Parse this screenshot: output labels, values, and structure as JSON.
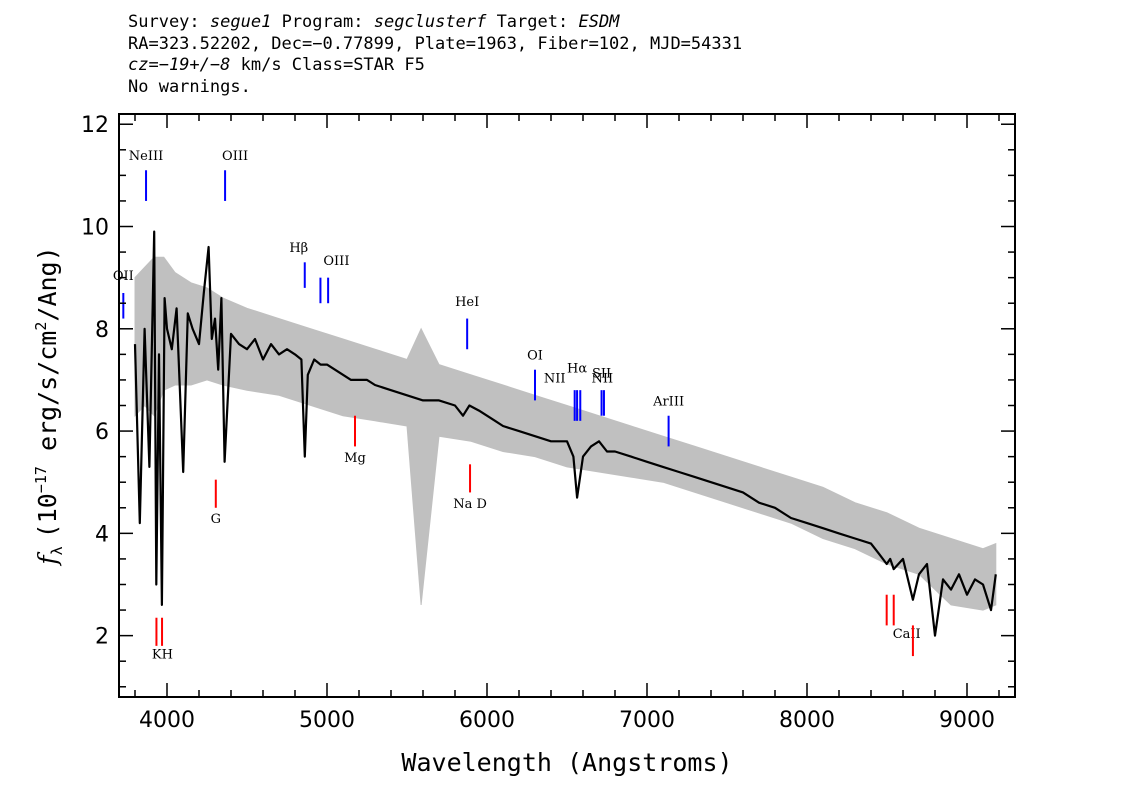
{
  "header": {
    "survey_label": "Survey:",
    "survey": "segue1",
    "program_label": "Program:",
    "program": "segclusterf",
    "target_label": "Target:",
    "target": "ESDM",
    "line2": "RA=323.52202, Dec=−0.77899, Plate=1963, Fiber=102, MJD=54331",
    "cz_label": "cz=",
    "cz_value": "−19+/−8",
    "cz_rest": " km/s Class=STAR F5",
    "line4": "No warnings."
  },
  "chart_data": {
    "type": "line",
    "xlabel": "Wavelength (Angstroms)",
    "ylabel_text": "(10",
    "ylabel_exp": "−17",
    "ylabel_mid": " erg/s/cm",
    "ylabel_exp2": "2",
    "ylabel_end": "/Ang)",
    "ylabel_symbol": "f",
    "ylabel_sub": "λ",
    "xlim": [
      3700,
      9300
    ],
    "ylim": [
      0.8,
      12.2
    ],
    "xticks": [
      4000,
      5000,
      6000,
      7000,
      8000,
      9000
    ],
    "xtick_labels": [
      "4000",
      "5000",
      "6000",
      "7000",
      "8000",
      "9000"
    ],
    "yticks": [
      2,
      4,
      6,
      8,
      10,
      12
    ],
    "ytick_labels": [
      "2",
      "4",
      "6",
      "8",
      "10",
      "12"
    ],
    "series": [
      {
        "role": "flux",
        "color": "#000000",
        "x": [
          3800,
          3830,
          3860,
          3890,
          3920,
          3933,
          3950,
          3968,
          3985,
          4000,
          4030,
          4060,
          4101,
          4130,
          4160,
          4200,
          4230,
          4260,
          4280,
          4300,
          4320,
          4340,
          4360,
          4400,
          4450,
          4500,
          4550,
          4600,
          4650,
          4700,
          4750,
          4800,
          4840,
          4861,
          4880,
          4920,
          4960,
          5000,
          5050,
          5100,
          5150,
          5200,
          5250,
          5300,
          5400,
          5500,
          5600,
          5700,
          5800,
          5850,
          5890,
          5950,
          6000,
          6050,
          6100,
          6200,
          6300,
          6400,
          6500,
          6540,
          6563,
          6600,
          6650,
          6700,
          6750,
          6800,
          6900,
          7000,
          7100,
          7200,
          7300,
          7400,
          7500,
          7600,
          7700,
          7800,
          7900,
          8000,
          8100,
          8200,
          8300,
          8400,
          8450,
          8498,
          8520,
          8542,
          8600,
          8662,
          8700,
          8750,
          8800,
          8850,
          8900,
          8950,
          9000,
          9050,
          9100,
          9150,
          9180
        ],
        "y": [
          7.7,
          4.2,
          8.0,
          5.3,
          9.9,
          3.0,
          7.5,
          2.6,
          8.6,
          8.0,
          7.6,
          8.4,
          5.2,
          8.3,
          8.0,
          7.7,
          8.7,
          9.6,
          7.8,
          8.2,
          7.2,
          8.6,
          5.4,
          7.9,
          7.7,
          7.6,
          7.8,
          7.4,
          7.7,
          7.5,
          7.6,
          7.5,
          7.4,
          5.5,
          7.1,
          7.4,
          7.3,
          7.3,
          7.2,
          7.1,
          7.0,
          7.0,
          7.0,
          6.9,
          6.8,
          6.7,
          6.6,
          6.6,
          6.5,
          6.3,
          6.5,
          6.4,
          6.3,
          6.2,
          6.1,
          6.0,
          5.9,
          5.8,
          5.8,
          5.5,
          4.7,
          5.5,
          5.7,
          5.8,
          5.6,
          5.6,
          5.5,
          5.4,
          5.3,
          5.2,
          5.1,
          5.0,
          4.9,
          4.8,
          4.6,
          4.5,
          4.3,
          4.2,
          4.1,
          4.0,
          3.9,
          3.8,
          3.6,
          3.4,
          3.5,
          3.3,
          3.5,
          2.7,
          3.2,
          3.4,
          2.0,
          3.1,
          2.9,
          3.2,
          2.8,
          3.1,
          3.0,
          2.5,
          3.2
        ]
      },
      {
        "role": "error",
        "color": "#c0c0c0",
        "x": [
          3800,
          3860,
          3920,
          3980,
          4050,
          4150,
          4250,
          4350,
          4500,
          4700,
          4900,
          5100,
          5300,
          5500,
          5588,
          5700,
          5900,
          6100,
          6300,
          6500,
          6700,
          6900,
          7100,
          7300,
          7500,
          7700,
          7900,
          8100,
          8300,
          8500,
          8700,
          8900,
          9100,
          9180
        ],
        "y_low": [
          6.3,
          6.5,
          6.3,
          6.8,
          6.9,
          6.9,
          7.0,
          6.9,
          6.8,
          6.7,
          6.5,
          6.3,
          6.2,
          6.1,
          2.6,
          5.9,
          5.8,
          5.6,
          5.5,
          5.3,
          5.2,
          5.1,
          5.0,
          4.8,
          4.6,
          4.4,
          4.2,
          3.9,
          3.7,
          3.4,
          3.2,
          2.6,
          2.5,
          2.6
        ],
        "y_high": [
          9.0,
          9.2,
          9.4,
          9.4,
          9.1,
          8.9,
          8.8,
          8.6,
          8.4,
          8.2,
          8.0,
          7.8,
          7.6,
          7.4,
          8.0,
          7.3,
          7.1,
          6.9,
          6.7,
          6.5,
          6.3,
          6.1,
          5.9,
          5.7,
          5.5,
          5.3,
          5.1,
          4.9,
          4.6,
          4.4,
          4.1,
          3.9,
          3.7,
          3.8
        ]
      }
    ],
    "emission_lines": [
      {
        "label": "OII",
        "wavelength": 3727,
        "y1": 8.2,
        "y2": 8.7,
        "label_y": 8.95,
        "label_dx": 0
      },
      {
        "label": "NeIII",
        "wavelength": 3869,
        "y1": 10.5,
        "y2": 11.1,
        "label_y": 11.3,
        "label_dx": 0
      },
      {
        "label": "OIII",
        "wavelength": 4363,
        "y1": 10.5,
        "y2": 11.1,
        "label_y": 11.3,
        "label_dx": 10
      },
      {
        "label": "Hβ",
        "wavelength": 4861,
        "y1": 8.8,
        "y2": 9.3,
        "label_y": 9.5,
        "label_dx": -6
      },
      {
        "label": "OIII",
        "wavelength": 4959,
        "y1": 8.5,
        "y2": 9.0,
        "label_y": 9.25,
        "label_dx": 16
      },
      {
        "label": "OIII",
        "wavelength": 5007,
        "y1": 8.5,
        "y2": 9.0,
        "label_y": null,
        "label_dx": 0
      },
      {
        "label": "HeI",
        "wavelength": 5876,
        "y1": 7.6,
        "y2": 8.2,
        "label_y": 8.45,
        "label_dx": 0
      },
      {
        "label": "OI",
        "wavelength": 6300,
        "y1": 6.6,
        "y2": 7.2,
        "label_y": 7.4,
        "label_dx": 0
      },
      {
        "label": "NII",
        "wavelength": 6548,
        "y1": 6.2,
        "y2": 6.8,
        "label_y": 6.95,
        "label_dx": -20
      },
      {
        "label": "Hα",
        "wavelength": 6563,
        "y1": 6.2,
        "y2": 6.8,
        "label_y": 7.15,
        "label_dx": 0
      },
      {
        "label": "NII",
        "wavelength": 6583,
        "y1": 6.2,
        "y2": 6.8,
        "label_y": 6.95,
        "label_dx": 22
      },
      {
        "label": "SII",
        "wavelength": 6716,
        "y1": 6.3,
        "y2": 6.8,
        "label_y": 7.05,
        "label_dx": 0
      },
      {
        "label": "SII",
        "wavelength": 6731,
        "y1": 6.3,
        "y2": 6.8,
        "label_y": null,
        "label_dx": 0
      },
      {
        "label": "ArIII",
        "wavelength": 7135,
        "y1": 5.7,
        "y2": 6.3,
        "label_y": 6.5,
        "label_dx": 0
      }
    ],
    "absorption_lines": [
      {
        "label": "KH",
        "wavelength": 3934,
        "y1": 1.8,
        "y2": 2.35,
        "label_y": 1.55,
        "label_dx": 6
      },
      {
        "label": "KH",
        "wavelength": 3969,
        "y1": 1.8,
        "y2": 2.35,
        "label_y": null,
        "label_dx": 0
      },
      {
        "label": "G",
        "wavelength": 4305,
        "y1": 4.5,
        "y2": 5.05,
        "label_y": 4.2,
        "label_dx": 0
      },
      {
        "label": "Mg",
        "wavelength": 5175,
        "y1": 5.7,
        "y2": 6.3,
        "label_y": 5.4,
        "label_dx": 0
      },
      {
        "label": "Na D",
        "wavelength": 5894,
        "y1": 4.8,
        "y2": 5.35,
        "label_y": 4.5,
        "label_dx": 0
      },
      {
        "label": "CaII",
        "wavelength": 8498,
        "y1": 2.2,
        "y2": 2.8,
        "label_y": 1.95,
        "label_dx": 20
      },
      {
        "label": "CaII",
        "wavelength": 8542,
        "y1": 2.2,
        "y2": 2.8,
        "label_y": null,
        "label_dx": 0
      },
      {
        "label": "CaII",
        "wavelength": 8662,
        "y1": 1.6,
        "y2": 2.2,
        "label_y": null,
        "label_dx": 0
      }
    ],
    "emission_color": "#0000ff",
    "absorption_color": "#ff0000"
  }
}
